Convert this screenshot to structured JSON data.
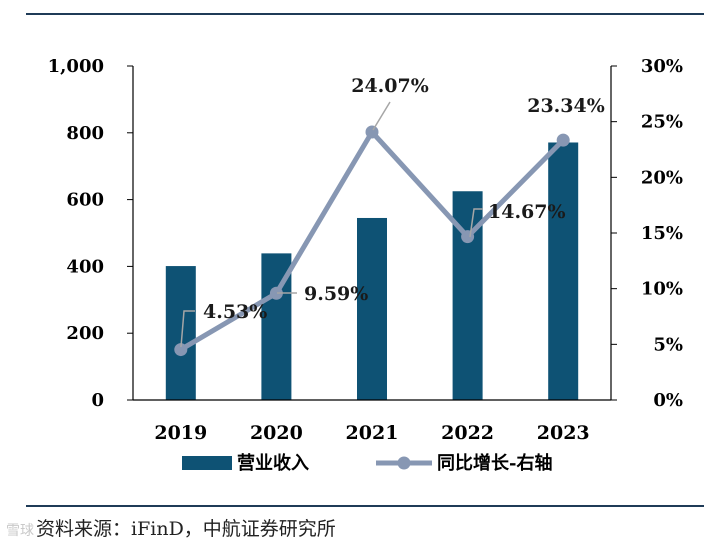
{
  "chart_data": {
    "type": "bar+line",
    "categories": [
      "2019",
      "2020",
      "2021",
      "2022",
      "2023"
    ],
    "series": [
      {
        "name": "营业收入",
        "axis": "left",
        "type": "bar",
        "values": [
          401,
          439,
          545,
          625,
          771
        ]
      },
      {
        "name": "同比增长-右轴",
        "axis": "right",
        "type": "line",
        "values": [
          4.53,
          9.59,
          24.07,
          14.67,
          23.34
        ],
        "labels": [
          "4.53%",
          "9.59%",
          "24.07%",
          "14.67%",
          "23.34%"
        ]
      }
    ],
    "y_left": {
      "ylim": [
        0,
        1000
      ],
      "ticks": [
        0,
        200,
        400,
        600,
        800,
        1000
      ],
      "tick_labels": [
        "0",
        "200",
        "400",
        "600",
        "800",
        "1,000"
      ]
    },
    "y_right": {
      "ylim": [
        0,
        30
      ],
      "ticks": [
        0,
        5,
        10,
        15,
        20,
        25,
        30
      ],
      "tick_labels": [
        "0%",
        "5%",
        "10%",
        "15%",
        "20%",
        "25%",
        "30%"
      ]
    },
    "legend": {
      "placement": "bottom",
      "bar_label": "营业收入",
      "line_label": "同比增长-右轴"
    },
    "colors": {
      "bar": "#0e5274",
      "line": "#8797b3",
      "axis": "#000000",
      "leader": "#a6a6a6"
    }
  },
  "footer": {
    "source": "资料来源：iFinD，中航证券研究所",
    "watermark": "雪球"
  }
}
